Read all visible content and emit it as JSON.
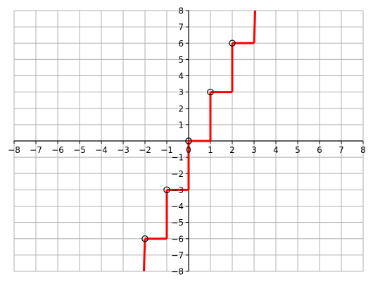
{
  "chart_data": {
    "type": "line",
    "title": "",
    "xlabel": "",
    "ylabel": "",
    "xlim": [
      -8,
      8
    ],
    "ylim": [
      -8,
      8
    ],
    "grid": true,
    "x_ticks": [
      -8,
      -7,
      -6,
      -5,
      -4,
      -3,
      -2,
      -1,
      0,
      1,
      2,
      3,
      4,
      5,
      6,
      7,
      8
    ],
    "x_tick_labels": [
      "−8",
      "−7",
      "−6",
      "−5",
      "−4",
      "−3",
      "−2",
      "−1",
      "0",
      "1",
      "2",
      "3",
      "4",
      "5",
      "6",
      "7",
      "8"
    ],
    "y_ticks": [
      -8,
      -7,
      -6,
      -5,
      -4,
      -3,
      -2,
      -1,
      1,
      2,
      3,
      4,
      5,
      6,
      7,
      8
    ],
    "y_tick_labels": [
      "−8",
      "−7",
      "−6",
      "−5",
      "−4",
      "−3",
      "−2",
      "−1",
      "1",
      "2",
      "3",
      "4",
      "5",
      "6",
      "7",
      "8"
    ],
    "series": [
      {
        "color": "#ff0000",
        "style": "step",
        "segments": [
          [
            [
              -2.05,
              -8
            ],
            [
              -2,
              -6
            ]
          ],
          [
            [
              -2,
              -6
            ],
            [
              -1,
              -6
            ]
          ],
          [
            [
              -1,
              -6
            ],
            [
              -1,
              -3
            ]
          ],
          [
            [
              -1,
              -3
            ],
            [
              0,
              -3
            ]
          ],
          [
            [
              0,
              -3
            ],
            [
              0,
              0
            ]
          ],
          [
            [
              0,
              0
            ],
            [
              1,
              0
            ]
          ],
          [
            [
              1,
              0
            ],
            [
              1,
              3
            ]
          ],
          [
            [
              1,
              3
            ],
            [
              2,
              3
            ]
          ],
          [
            [
              2,
              3
            ],
            [
              2,
              6
            ]
          ],
          [
            [
              2,
              6
            ],
            [
              3,
              6
            ]
          ],
          [
            [
              3,
              6
            ],
            [
              3.05,
              8
            ]
          ]
        ]
      }
    ],
    "open_points": [
      [
        -2,
        -6
      ],
      [
        -1,
        -3
      ],
      [
        0,
        0
      ],
      [
        1,
        3
      ],
      [
        2,
        6
      ]
    ],
    "colors": {
      "grid": "#b0b0b0",
      "axis": "#000000",
      "series": "#ff0000",
      "marker_edge": "#000000"
    }
  }
}
